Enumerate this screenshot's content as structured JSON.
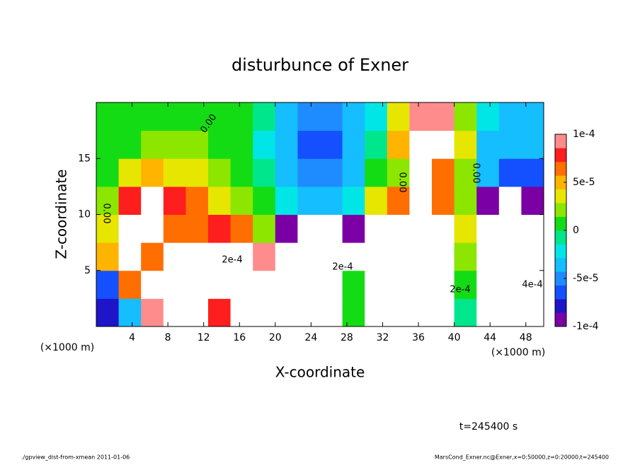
{
  "chart_data": {
    "type": "heatmap",
    "title": "disturbunce of Exner",
    "x_label": "X-coordinate",
    "y_label": "Z-coordinate",
    "x_unit": "(×1000 m)",
    "y_unit": "(×1000 m)",
    "time_label": "t=245400 s",
    "footer_left": "./gpview_dist-from-xmean  2011-01-06",
    "footer_right": "MarsCond_Exner.nc@Exner,x=0:50000,z=0:20000,t=245400",
    "annotations": [
      "0.00",
      "0.00",
      "0.00",
      "0.00",
      "2e-4",
      "2e-4",
      "2e-4",
      "4e-4"
    ],
    "xlim": [
      0,
      50
    ],
    "ylim": [
      0,
      20
    ],
    "xticks": [
      4,
      8,
      12,
      16,
      20,
      24,
      28,
      32,
      36,
      40,
      44,
      48
    ],
    "yticks": [
      5,
      10,
      15
    ],
    "x": [
      1.25,
      3.75,
      6.25,
      8.75,
      11.25,
      13.75,
      16.25,
      18.75,
      21.25,
      23.75,
      26.25,
      28.75,
      31.25,
      33.75,
      36.25,
      38.75,
      41.25,
      43.75,
      46.25,
      48.75
    ],
    "y": [
      1.25,
      3.75,
      6.25,
      8.75,
      11.25,
      13.75,
      16.25,
      18.75
    ],
    "z": [
      [
        -8e-05,
        -3e-05,
        9e-05,
        0.0002,
        0.0002,
        8e-05,
        0.0002,
        0.0002,
        -0.0002,
        -0.0002,
        -0.0002,
        0,
        0.0002,
        0.0002,
        0.0002,
        0.0002,
        -1e-05,
        -0.0002,
        -0.0002,
        -0.0002
      ],
      [
        -6e-05,
        6e-05,
        0.0002,
        0.0002,
        0.0002,
        0.0002,
        0.0002,
        0.0002,
        -0.0002,
        -0.0002,
        -0.0002,
        0,
        0.0002,
        0.0002,
        0.0002,
        0.0002,
        0,
        -0.0002,
        -0.0002,
        -0.0002
      ],
      [
        5e-05,
        0.0002,
        7e-05,
        0.0002,
        0.0002,
        0.0002,
        0.0002,
        9e-05,
        -0.0002,
        -0.0002,
        -0.0002,
        -0.0002,
        0.0002,
        0.0002,
        0.0002,
        0.0002,
        2e-05,
        -0.0002,
        -0.0002,
        -0.0002
      ],
      [
        3e-05,
        0.0002,
        0.0002,
        7e-05,
        7e-05,
        8e-05,
        7e-05,
        2e-05,
        -9e-05,
        -0.0002,
        -0.0002,
        -9e-05,
        0.0002,
        0.0002,
        0.0002,
        0.0002,
        3e-05,
        -0.0002,
        -0.0002,
        -0.0002
      ],
      [
        2e-05,
        8e-05,
        0.0002,
        8e-05,
        6e-05,
        4e-05,
        2e-05,
        1e-05,
        -2e-05,
        -4e-05,
        -4e-05,
        -2e-05,
        3e-05,
        6e-05,
        0.0002,
        6e-05,
        2e-05,
        -9e-05,
        -0.0002,
        -9e-05
      ],
      [
        1e-05,
        4e-05,
        5e-05,
        4e-05,
        3e-05,
        2e-05,
        1e-05,
        -1e-05,
        -3e-05,
        -5e-05,
        -5e-05,
        -3e-05,
        0,
        2e-05,
        0.0002,
        7e-05,
        2e-05,
        -4e-05,
        -7e-05,
        -6e-05
      ],
      [
        0,
        1e-05,
        2e-05,
        2e-05,
        2e-05,
        1e-05,
        0,
        -2e-05,
        -4e-05,
        -6e-05,
        -6e-05,
        -4e-05,
        -1e-05,
        5e-05,
        0.0002,
        0.0002,
        3e-05,
        -3e-05,
        -4e-05,
        -4e-05
      ],
      [
        0,
        1e-05,
        1e-05,
        1e-05,
        1e-05,
        1e-05,
        0,
        -1e-05,
        -3e-05,
        -5e-05,
        -5e-05,
        -4e-05,
        -2e-05,
        3e-05,
        9e-05,
        9e-05,
        2e-05,
        -2e-05,
        -3e-05,
        -3e-05
      ]
    ],
    "clim": [
      -0.0001,
      0.0001
    ],
    "cticks": [
      {
        "value": 0.0001,
        "label": "1e-4"
      },
      {
        "value": 5e-05,
        "label": "5e-5"
      },
      0,
      {
        "value": -5e-05,
        "label": "-5e-5"
      },
      {
        "value": -0.0001,
        "label": "-1e-4"
      }
    ],
    "colors": [
      "#7a00a5",
      "#1e14c8",
      "#1450ff",
      "#1e8cff",
      "#14beff",
      "#00e6e6",
      "#00e68c",
      "#14dc14",
      "#8ce600",
      "#e6e600",
      "#ffb400",
      "#ff6e00",
      "#ff1e1e",
      "#ff8c8c"
    ],
    "out_of_range_color": "#ffffff"
  }
}
